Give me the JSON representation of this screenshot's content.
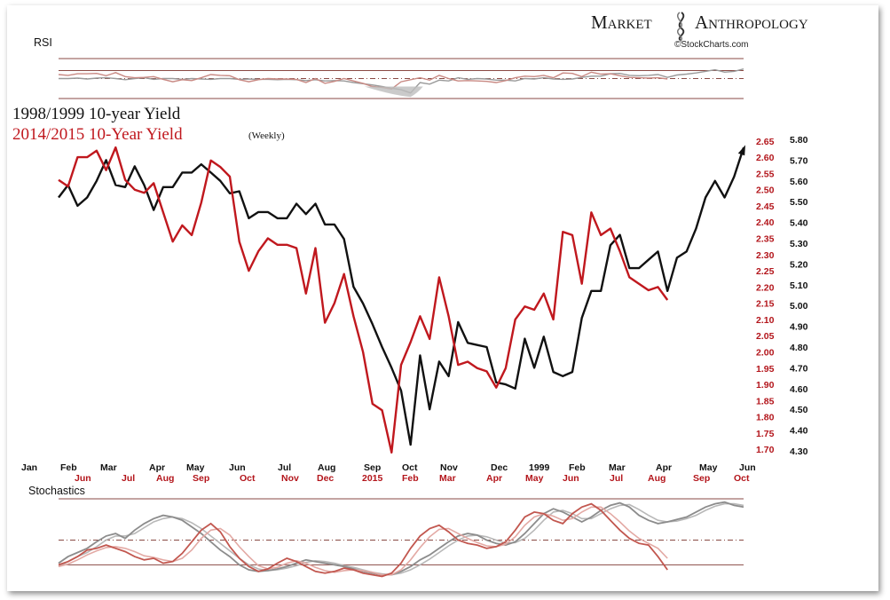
{
  "brand": {
    "name_left": "Market",
    "name_right": "Anthropology",
    "credit": "©StockCharts.com",
    "color": "#1a1a1a"
  },
  "chart_data": {
    "type": "line",
    "title_black": "1998/1999 10-year Yield",
    "title_red": "2014/2015  10-Year Yield",
    "title_red_note": "(Weekly)",
    "colors": {
      "black_series": "#111111",
      "red_series": "#c0181e"
    },
    "rsi_label": "RSI",
    "stoch_label": "Stochastics",
    "left_axis_ticks": [
      "2.65",
      "2.60",
      "2.55",
      "2.50",
      "2.45",
      "2.40",
      "2.35",
      "2.30",
      "2.25",
      "2.20",
      "2.15",
      "2.10",
      "2.05",
      "2.00",
      "1.95",
      "1.90",
      "1.85",
      "1.80",
      "1.75",
      "1.70"
    ],
    "right_axis_ticks": [
      "5.80",
      "5.70",
      "5.60",
      "5.50",
      "5.40",
      "5.30",
      "5.20",
      "5.10",
      "5.00",
      "4.90",
      "4.80",
      "4.70",
      "4.60",
      "4.50",
      "4.40",
      "4.30"
    ],
    "red_ylim": [
      1.695,
      2.655
    ],
    "black_ylim": [
      4.3,
      5.8
    ],
    "x_labels_black": [
      "Jan",
      "Feb",
      "Mar",
      "Apr",
      "May",
      "Jun",
      "Jul",
      "Aug",
      "Sep",
      "Oct",
      "Nov",
      "Dec",
      "1999",
      "Feb",
      "Mar",
      "Apr",
      "May",
      "Jun"
    ],
    "x_labels_red": [
      "Jun",
      "Jul",
      "Aug",
      "Sep",
      "Oct",
      "Nov",
      "Dec",
      "2015",
      "Feb",
      "Mar",
      "Apr",
      "May",
      "Jun",
      "Jul",
      "Aug",
      "Sep",
      "Oct"
    ],
    "series": [
      {
        "name": "1998/1999 10-year Yield",
        "values": [
          5.52,
          5.58,
          5.48,
          5.52,
          5.6,
          5.7,
          5.58,
          5.57,
          5.67,
          5.58,
          5.46,
          5.57,
          5.57,
          5.64,
          5.64,
          5.68,
          5.64,
          5.6,
          5.54,
          5.55,
          5.42,
          5.45,
          5.45,
          5.42,
          5.42,
          5.49,
          5.44,
          5.49,
          5.39,
          5.39,
          5.32,
          5.09,
          5.01,
          4.91,
          4.8,
          4.7,
          4.59,
          4.33,
          4.76,
          4.5,
          4.73,
          4.66,
          4.92,
          4.82,
          4.81,
          4.8,
          4.63,
          4.62,
          4.6,
          4.84,
          4.7,
          4.85,
          4.68,
          4.66,
          4.68,
          4.94,
          5.07,
          5.07,
          5.29,
          5.34,
          5.18,
          5.18,
          5.22,
          5.26,
          5.07,
          5.23,
          5.26,
          5.37,
          5.52,
          5.6,
          5.52,
          5.62,
          5.76
        ]
      },
      {
        "name": "2014/2015 10-Year Yield",
        "values": [
          2.53,
          2.51,
          2.6,
          2.6,
          2.62,
          2.56,
          2.63,
          2.53,
          2.5,
          2.49,
          2.52,
          2.43,
          2.34,
          2.39,
          2.36,
          2.46,
          2.59,
          2.57,
          2.54,
          2.34,
          2.25,
          2.31,
          2.35,
          2.33,
          2.33,
          2.32,
          2.18,
          2.32,
          2.09,
          2.15,
          2.24,
          2.11,
          2.0,
          1.84,
          1.82,
          1.69,
          1.96,
          2.03,
          2.11,
          2.04,
          2.23,
          2.11,
          1.96,
          1.97,
          1.95,
          1.94,
          1.89,
          1.95,
          2.1,
          2.14,
          2.13,
          2.18,
          2.1,
          2.37,
          2.36,
          2.21,
          2.43,
          2.36,
          2.38,
          2.31,
          2.23,
          2.21,
          2.19,
          2.2,
          2.16
        ]
      }
    ],
    "rsi": {
      "ylim": [
        0,
        100
      ],
      "levels": [
        100,
        70,
        50,
        30
      ],
      "black": [
        50,
        50,
        51,
        49,
        51,
        52,
        50,
        47,
        50,
        52,
        48,
        50,
        50,
        48,
        50,
        49,
        48,
        50,
        50,
        48,
        49,
        48,
        48,
        47,
        48,
        47,
        45,
        47,
        44,
        45,
        44,
        40,
        37,
        34,
        30,
        26,
        22,
        14,
        40,
        36,
        46,
        44,
        52,
        48,
        50,
        49,
        46,
        46,
        44,
        50,
        49,
        52,
        49,
        48,
        49,
        53,
        56,
        56,
        62,
        63,
        58,
        57,
        58,
        60,
        53,
        59,
        61,
        64,
        68,
        72,
        66,
        68,
        74
      ],
      "red": [
        60,
        58,
        62,
        62,
        63,
        57,
        65,
        55,
        52,
        53,
        55,
        48,
        42,
        47,
        45,
        52,
        60,
        58,
        57,
        47,
        42,
        47,
        50,
        49,
        49,
        48,
        40,
        50,
        38,
        43,
        50,
        44,
        38,
        30,
        28,
        24,
        42,
        47,
        52,
        46,
        58,
        50,
        44,
        45,
        44,
        43,
        40,
        45,
        52,
        56,
        55,
        58,
        52,
        64,
        63,
        55,
        66,
        61,
        62,
        57,
        53,
        52,
        51,
        52,
        49
      ]
    },
    "stochastics": {
      "ylim": [
        0,
        100
      ],
      "levels": [
        100,
        80,
        50,
        20
      ],
      "black_k": [
        22,
        30,
        35,
        40,
        48,
        55,
        58,
        52,
        62,
        70,
        76,
        80,
        78,
        74,
        66,
        58,
        48,
        38,
        30,
        20,
        14,
        12,
        13,
        15,
        18,
        22,
        26,
        24,
        22,
        20,
        18,
        15,
        12,
        10,
        8,
        8,
        12,
        18,
        26,
        32,
        40,
        48,
        55,
        58,
        56,
        50,
        46,
        44,
        48,
        58,
        70,
        82,
        88,
        84,
        78,
        72,
        78,
        86,
        92,
        95,
        90,
        80,
        74,
        70,
        72,
        75,
        78,
        84,
        90,
        94,
        96,
        92,
        90
      ],
      "black_d": [
        18,
        24,
        30,
        35,
        42,
        50,
        55,
        55,
        58,
        65,
        72,
        76,
        78,
        76,
        71,
        64,
        55,
        46,
        37,
        28,
        20,
        15,
        13,
        14,
        16,
        19,
        23,
        25,
        24,
        22,
        19,
        17,
        14,
        11,
        9,
        8,
        10,
        14,
        20,
        27,
        35,
        43,
        50,
        55,
        56,
        54,
        50,
        46,
        47,
        52,
        62,
        74,
        84,
        86,
        82,
        76,
        76,
        82,
        88,
        92,
        93,
        87,
        80,
        74,
        72,
        73,
        76,
        80,
        86,
        91,
        94,
        94,
        92
      ],
      "red_k": [
        20,
        24,
        30,
        38,
        40,
        44,
        40,
        36,
        30,
        26,
        28,
        22,
        24,
        34,
        48,
        62,
        70,
        60,
        42,
        28,
        18,
        12,
        15,
        22,
        28,
        24,
        18,
        12,
        10,
        12,
        16,
        14,
        10,
        8,
        6,
        10,
        22,
        40,
        55,
        64,
        68,
        60,
        50,
        46,
        44,
        40,
        42,
        48,
        62,
        78,
        84,
        82,
        74,
        70,
        82,
        90,
        94,
        86,
        74,
        62,
        52,
        46,
        44,
        30,
        14
      ],
      "red_d": [
        18,
        21,
        26,
        32,
        37,
        41,
        42,
        40,
        36,
        31,
        29,
        26,
        24,
        28,
        38,
        52,
        62,
        64,
        56,
        42,
        30,
        19,
        15,
        17,
        22,
        25,
        22,
        17,
        13,
        11,
        13,
        14,
        13,
        11,
        8,
        8,
        14,
        26,
        41,
        54,
        63,
        64,
        58,
        52,
        47,
        43,
        42,
        45,
        54,
        68,
        78,
        82,
        79,
        74,
        76,
        84,
        90,
        90,
        82,
        72,
        61,
        52,
        46,
        40,
        28
      ]
    }
  }
}
